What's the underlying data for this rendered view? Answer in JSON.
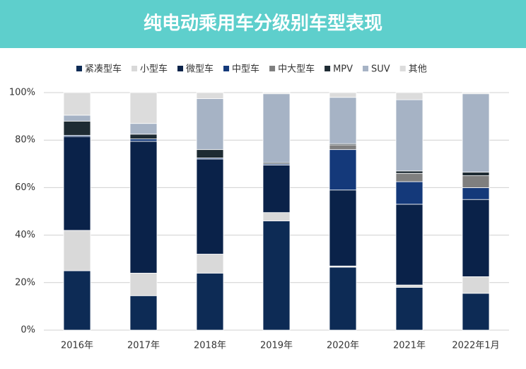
{
  "chart_data": {
    "type": "stacked_bar",
    "title": "纯电动乘用车分级别车型表现",
    "categories": [
      "2016年",
      "2017年",
      "2018年",
      "2019年",
      "2020年",
      "2021年",
      "2022年1月"
    ],
    "series": [
      {
        "name": "紧凑型车",
        "color": "#0d2b55",
        "values": [
          25,
          14.5,
          24,
          46,
          26.5,
          18,
          15.5
        ]
      },
      {
        "name": "小型车",
        "color": "#d9d9d9",
        "values": [
          17,
          9.5,
          8,
          3.5,
          0.5,
          1,
          7
        ]
      },
      {
        "name": "微型车",
        "color": "#0a2249",
        "values": [
          39.5,
          55.5,
          40,
          20,
          32,
          34,
          32.5
        ]
      },
      {
        "name": "中型车",
        "color": "#14397a",
        "values": [
          0.5,
          1,
          0.5,
          0.5,
          17,
          9.5,
          5
        ]
      },
      {
        "name": "中大型车",
        "color": "#7f7f7f",
        "values": [
          0,
          0,
          0,
          0,
          2,
          3.5,
          5
        ]
      },
      {
        "name": "MPV",
        "color": "#1e2b33",
        "values": [
          6,
          2,
          3.5,
          0.5,
          0.5,
          1,
          1.5
        ]
      },
      {
        "name": "SUV",
        "color": "#a6b3c5",
        "values": [
          2.5,
          4.5,
          21.5,
          29,
          19.5,
          30,
          33
        ]
      },
      {
        "name": "其他",
        "color": "#dcdcdc",
        "values": [
          9.5,
          13,
          2.5,
          0.5,
          2,
          3,
          0.5
        ]
      }
    ],
    "ylim": [
      0,
      100
    ],
    "yticks": [
      {
        "value": 0,
        "label": "0%"
      },
      {
        "value": 20,
        "label": "20%"
      },
      {
        "value": 40,
        "label": "40%"
      },
      {
        "value": 60,
        "label": "60%"
      },
      {
        "value": 80,
        "label": "80%"
      },
      {
        "value": 100,
        "label": "100%"
      }
    ],
    "grid": true,
    "legend": "top"
  }
}
